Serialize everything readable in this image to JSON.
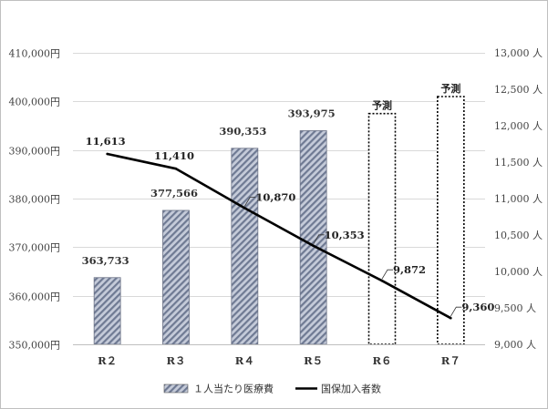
{
  "chart_data": {
    "type": "bar",
    "categories": [
      "R２",
      "R３",
      "R４",
      "R５",
      "R６",
      "R７"
    ],
    "series": [
      {
        "name": "１人当たり医療費",
        "kind": "bar",
        "axis": "left",
        "values": [
          363733,
          377566,
          390353,
          393975,
          397500,
          401000
        ],
        "labels": [
          "363,733",
          "377,566",
          "390,353",
          "393,975",
          "",
          ""
        ],
        "forecast": [
          false,
          false,
          false,
          false,
          true,
          true
        ],
        "color": "#a9b3c8"
      },
      {
        "name": "国保加入者数",
        "kind": "line",
        "axis": "right",
        "values": [
          11613,
          11410,
          10870,
          10353,
          9872,
          9360
        ],
        "labels": [
          "11,613",
          "11,410",
          "10,870",
          "10,353",
          "9,872",
          "9,360"
        ],
        "color": "#000000"
      }
    ],
    "forecast_label": "予測",
    "y_left": {
      "range": [
        350000,
        410000
      ],
      "ticks": [
        350000,
        360000,
        370000,
        380000,
        390000,
        400000,
        410000
      ],
      "tick_labels": [
        "350,000円",
        "360,000円",
        "370,000円",
        "380,000円",
        "390,000円",
        "400,000円",
        "410,000円"
      ]
    },
    "y_right": {
      "range": [
        9000,
        13000
      ],
      "ticks": [
        9000,
        9500,
        10000,
        10500,
        11000,
        11500,
        12000,
        12500,
        13000
      ],
      "tick_labels": [
        "9,000 人",
        "9,500 人",
        "10,000 人",
        "10,500 人",
        "11,000 人",
        "11,500 人",
        "12,000 人",
        "12,500 人",
        "13,000 人"
      ]
    },
    "grid": true,
    "legend": "bottom"
  }
}
